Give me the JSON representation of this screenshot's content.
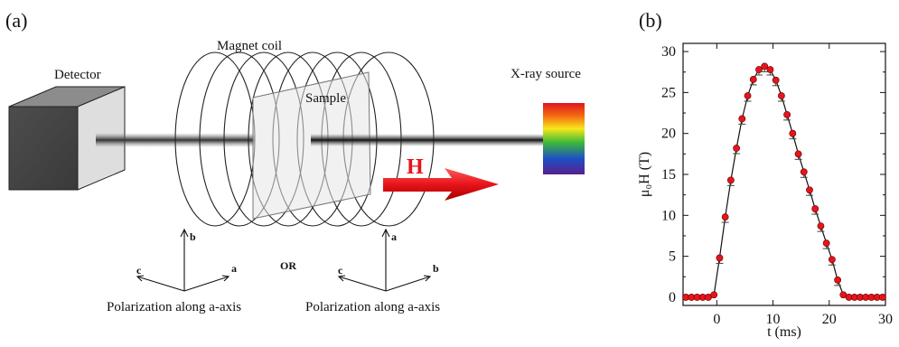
{
  "panel_a": {
    "label": "(a)",
    "detector": "Detector",
    "coil": "Magnet coil",
    "sample": "Sample",
    "source": "X-ray source",
    "field": "H",
    "or": "OR",
    "axes_left": {
      "up": "b",
      "left": "c",
      "right": "a"
    },
    "axes_right": {
      "up": "a",
      "left": "c",
      "right": "b"
    },
    "caption_left": "Polarization along a-axis",
    "caption_right": "Polarization along a-axis"
  },
  "panel_b": {
    "label": "(b)",
    "ylabel": "μ₀H (T)",
    "xlabel": "t (ms)"
  },
  "colors": {
    "arrow": "#e8141b",
    "marker": "#e8141b",
    "line": "#111111"
  },
  "chart_data": {
    "type": "scatter",
    "xlabel": "t (ms)",
    "ylabel": "μ₀H (T)",
    "xlim": [
      -6,
      30
    ],
    "ylim": [
      -1,
      31
    ],
    "xticks": [
      0,
      10,
      20,
      30
    ],
    "yticks": [
      0,
      5,
      10,
      15,
      20,
      25,
      30
    ],
    "grid": false,
    "series": [
      {
        "x": [
          -5.5,
          -4.5,
          -3.5,
          -2.5,
          -1.5,
          -0.5,
          0.5,
          1.5,
          2.5,
          3.5,
          4.5,
          5.5,
          6.5,
          7.5,
          8.5,
          9.5,
          10.5,
          11.5,
          12.5,
          13.5,
          14.5,
          15.5,
          16.5,
          17.5,
          18.5,
          19.5,
          20.5,
          21.5,
          22.5,
          23.5,
          24.5,
          25.5,
          26.5,
          27.5,
          28.5,
          29.5
        ],
        "y": [
          0,
          0,
          0,
          0,
          0,
          0.3,
          4.8,
          9.8,
          14.3,
          18.2,
          21.8,
          24.6,
          26.6,
          27.8,
          28.2,
          27.8,
          26.5,
          24.6,
          22.3,
          20.0,
          17.5,
          15.3,
          13.1,
          10.8,
          8.7,
          6.6,
          4.6,
          2.1,
          0.3,
          0,
          0,
          0,
          0,
          0,
          0,
          0
        ]
      }
    ]
  }
}
